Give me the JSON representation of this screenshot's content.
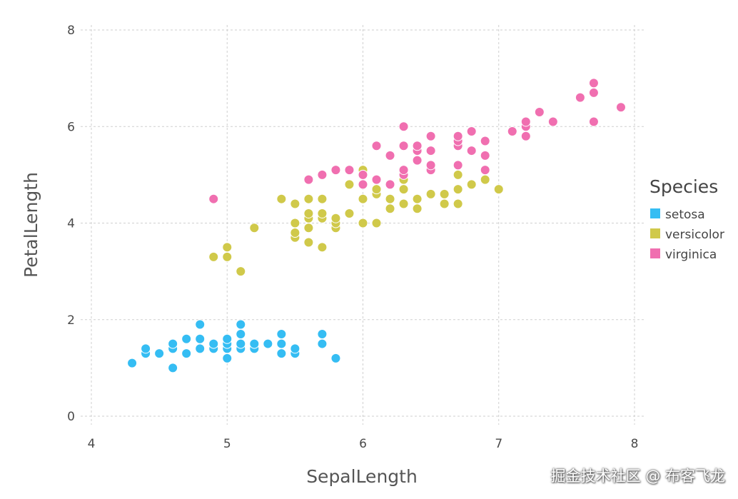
{
  "chart_data": {
    "type": "scatter",
    "xlabel": "SepalLength",
    "ylabel": "PetalLength",
    "xlim": [
      4,
      8
    ],
    "ylim": [
      0,
      8
    ],
    "xticks": [
      "4",
      "5",
      "6",
      "7",
      "8"
    ],
    "yticks": [
      "0",
      "2",
      "4",
      "6",
      "8"
    ],
    "grid": true,
    "legend_title": "Species",
    "legend_position": "right",
    "series": [
      {
        "name": "setosa",
        "color": "#35bdf3",
        "points": [
          [
            4.3,
            1.1
          ],
          [
            4.4,
            1.3
          ],
          [
            4.4,
            1.4
          ],
          [
            4.5,
            1.3
          ],
          [
            4.6,
            1.0
          ],
          [
            4.6,
            1.4
          ],
          [
            4.6,
            1.5
          ],
          [
            4.7,
            1.3
          ],
          [
            4.7,
            1.6
          ],
          [
            4.8,
            1.4
          ],
          [
            4.8,
            1.6
          ],
          [
            4.8,
            1.9
          ],
          [
            4.9,
            1.4
          ],
          [
            4.9,
            1.5
          ],
          [
            5.0,
            1.2
          ],
          [
            5.0,
            1.4
          ],
          [
            5.0,
            1.5
          ],
          [
            5.0,
            1.6
          ],
          [
            5.1,
            1.4
          ],
          [
            5.1,
            1.5
          ],
          [
            5.1,
            1.7
          ],
          [
            5.1,
            1.9
          ],
          [
            5.2,
            1.4
          ],
          [
            5.2,
            1.5
          ],
          [
            5.3,
            1.5
          ],
          [
            5.4,
            1.3
          ],
          [
            5.4,
            1.5
          ],
          [
            5.4,
            1.7
          ],
          [
            5.5,
            1.3
          ],
          [
            5.5,
            1.4
          ],
          [
            5.7,
            1.5
          ],
          [
            5.7,
            1.7
          ],
          [
            5.8,
            1.2
          ]
        ]
      },
      {
        "name": "versicolor",
        "color": "#d0c94a",
        "points": [
          [
            4.9,
            3.3
          ],
          [
            5.0,
            3.3
          ],
          [
            5.0,
            3.5
          ],
          [
            5.1,
            3.0
          ],
          [
            5.2,
            3.9
          ],
          [
            5.4,
            4.5
          ],
          [
            5.5,
            3.7
          ],
          [
            5.5,
            3.8
          ],
          [
            5.5,
            4.0
          ],
          [
            5.5,
            4.4
          ],
          [
            5.6,
            3.6
          ],
          [
            5.6,
            3.9
          ],
          [
            5.6,
            4.1
          ],
          [
            5.6,
            4.2
          ],
          [
            5.6,
            4.5
          ],
          [
            5.7,
            3.5
          ],
          [
            5.7,
            4.1
          ],
          [
            5.7,
            4.2
          ],
          [
            5.7,
            4.5
          ],
          [
            5.8,
            3.9
          ],
          [
            5.8,
            4.0
          ],
          [
            5.8,
            4.1
          ],
          [
            5.9,
            4.2
          ],
          [
            5.9,
            4.8
          ],
          [
            6.0,
            4.0
          ],
          [
            6.0,
            4.5
          ],
          [
            6.0,
            5.1
          ],
          [
            6.1,
            4.0
          ],
          [
            6.1,
            4.6
          ],
          [
            6.1,
            4.7
          ],
          [
            6.2,
            4.3
          ],
          [
            6.2,
            4.5
          ],
          [
            6.3,
            4.4
          ],
          [
            6.3,
            4.7
          ],
          [
            6.3,
            4.9
          ],
          [
            6.4,
            4.3
          ],
          [
            6.4,
            4.5
          ],
          [
            6.5,
            4.6
          ],
          [
            6.6,
            4.4
          ],
          [
            6.6,
            4.6
          ],
          [
            6.7,
            4.4
          ],
          [
            6.7,
            4.7
          ],
          [
            6.7,
            5.0
          ],
          [
            6.8,
            4.8
          ],
          [
            6.9,
            4.9
          ],
          [
            7.0,
            4.7
          ]
        ]
      },
      {
        "name": "virginica",
        "color": "#f06fb0",
        "points": [
          [
            4.9,
            4.5
          ],
          [
            5.6,
            4.9
          ],
          [
            5.7,
            5.0
          ],
          [
            5.8,
            5.1
          ],
          [
            5.9,
            5.1
          ],
          [
            6.0,
            4.8
          ],
          [
            6.0,
            5.0
          ],
          [
            6.1,
            4.9
          ],
          [
            6.1,
            5.6
          ],
          [
            6.2,
            4.8
          ],
          [
            6.2,
            5.4
          ],
          [
            6.3,
            5.0
          ],
          [
            6.3,
            5.1
          ],
          [
            6.3,
            5.6
          ],
          [
            6.3,
            6.0
          ],
          [
            6.4,
            5.3
          ],
          [
            6.4,
            5.5
          ],
          [
            6.4,
            5.6
          ],
          [
            6.5,
            5.1
          ],
          [
            6.5,
            5.2
          ],
          [
            6.5,
            5.5
          ],
          [
            6.5,
            5.8
          ],
          [
            6.7,
            5.2
          ],
          [
            6.7,
            5.6
          ],
          [
            6.7,
            5.7
          ],
          [
            6.7,
            5.8
          ],
          [
            6.8,
            5.5
          ],
          [
            6.8,
            5.9
          ],
          [
            6.9,
            5.1
          ],
          [
            6.9,
            5.4
          ],
          [
            6.9,
            5.7
          ],
          [
            7.1,
            5.9
          ],
          [
            7.2,
            5.8
          ],
          [
            7.2,
            6.0
          ],
          [
            7.2,
            6.1
          ],
          [
            7.3,
            6.3
          ],
          [
            7.4,
            6.1
          ],
          [
            7.6,
            6.6
          ],
          [
            7.7,
            6.1
          ],
          [
            7.7,
            6.7
          ],
          [
            7.7,
            6.9
          ],
          [
            7.9,
            6.4
          ]
        ]
      }
    ]
  },
  "watermark": "掘金技术社区 @ 布客飞龙"
}
